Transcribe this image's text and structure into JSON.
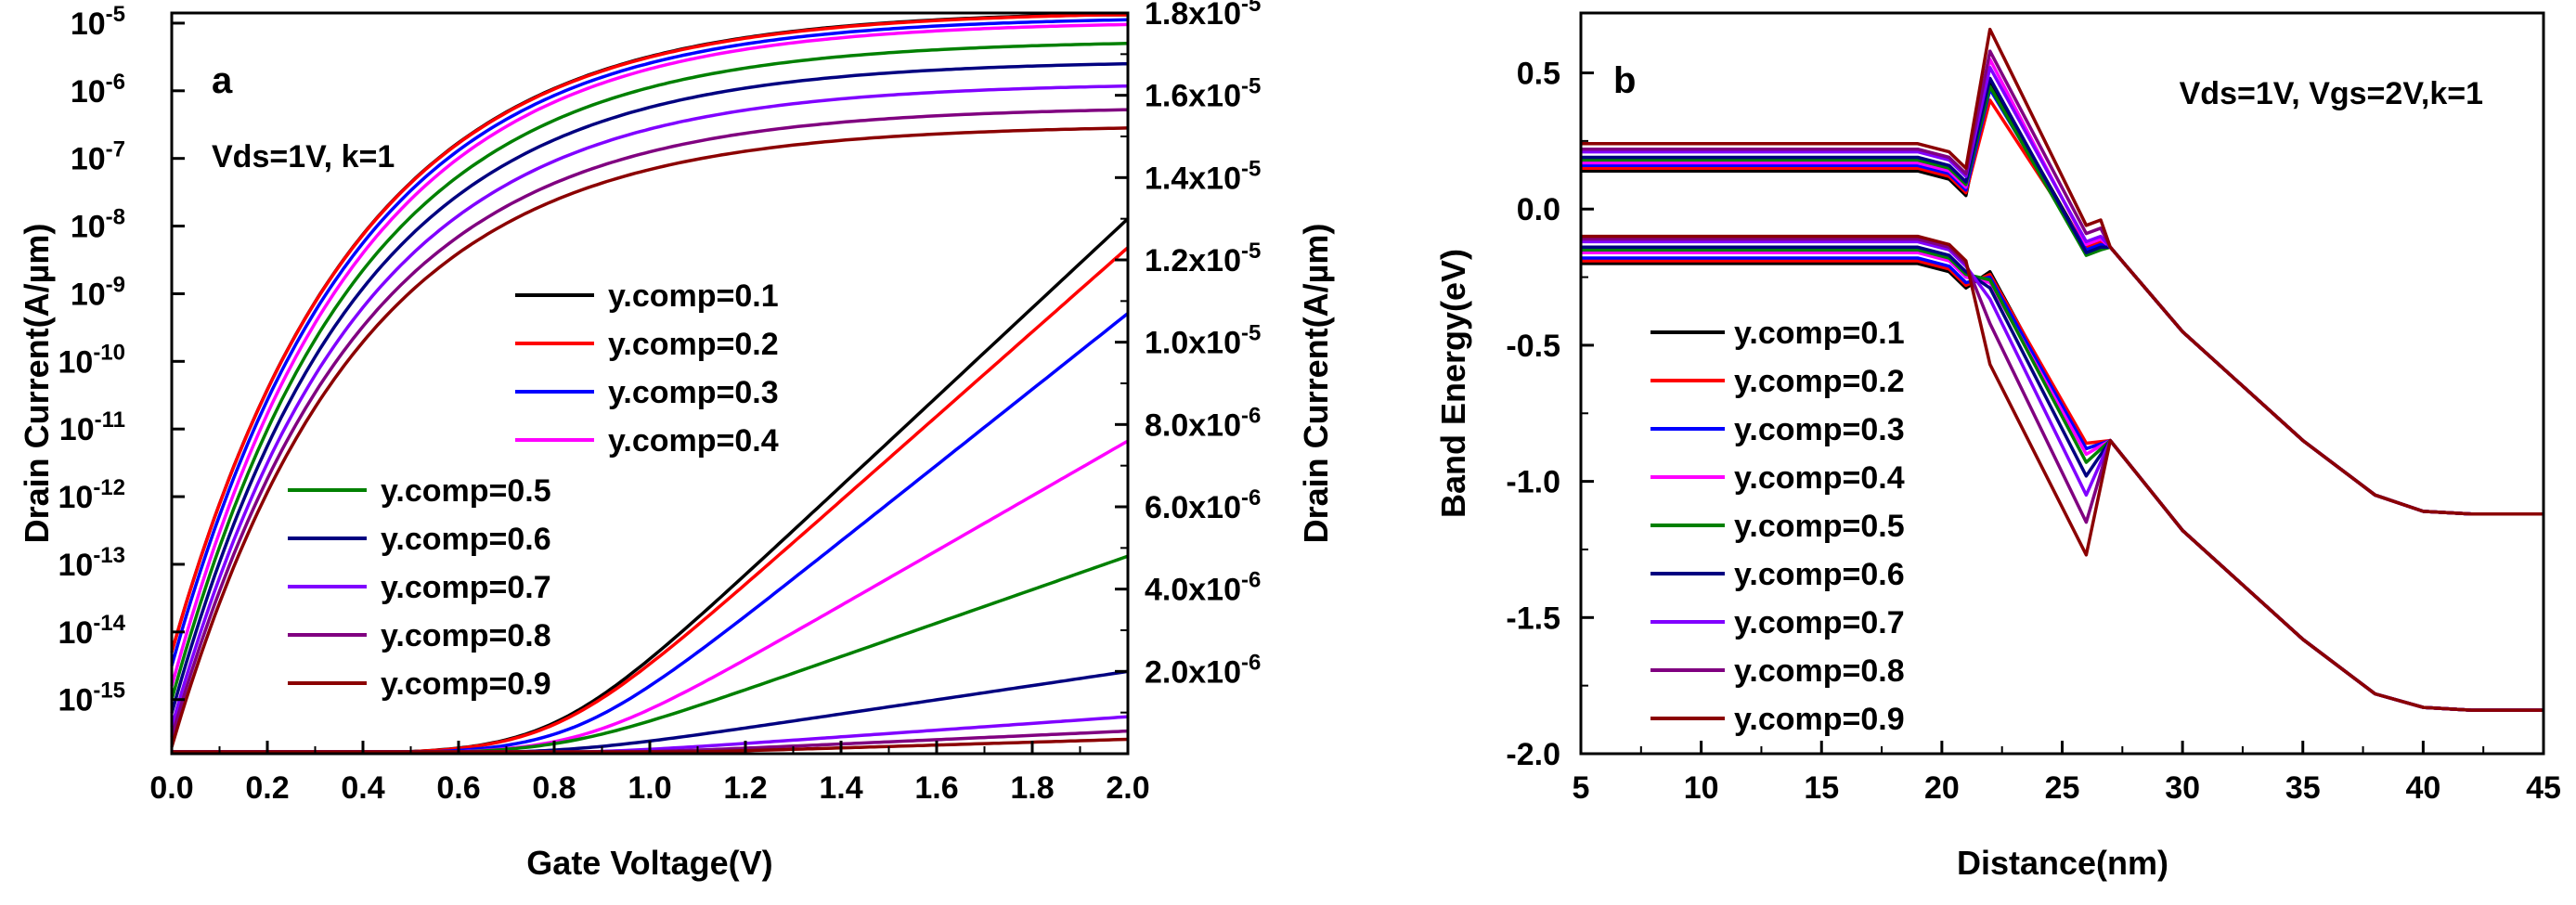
{
  "chart_data": [
    {
      "panel": "a",
      "type": "line",
      "annotation": "Vds=1V, k=1",
      "xlabel": "Gate Voltage(V)",
      "ylabel_left": "Drain Current(A/µm)",
      "ylabel_right": "Drain Current(A/µm)",
      "xlim": [
        0,
        2.0
      ],
      "x_ticks": [
        "0.0",
        "0.2",
        "0.4",
        "0.6",
        "0.8",
        "1.0",
        "1.2",
        "1.4",
        "1.6",
        "1.8",
        "2.0"
      ],
      "ylim_left_log10": [
        -15.8,
        -4.85
      ],
      "y_left_ticks": [
        {
          "base": "10",
          "exp": "-15"
        },
        {
          "base": "10",
          "exp": "-14"
        },
        {
          "base": "10",
          "exp": "-13"
        },
        {
          "base": "10",
          "exp": "-12"
        },
        {
          "base": "10",
          "exp": "-11"
        },
        {
          "base": "10",
          "exp": "-10"
        },
        {
          "base": "10",
          "exp": "-9"
        },
        {
          "base": "10",
          "exp": "-8"
        },
        {
          "base": "10",
          "exp": "-7"
        },
        {
          "base": "10",
          "exp": "-6"
        },
        {
          "base": "10",
          "exp": "-5"
        }
      ],
      "ylim_right": [
        0,
        1.8e-05
      ],
      "y_right_ticks": [
        {
          "mant": "2.0x10",
          "exp": "-6"
        },
        {
          "mant": "4.0x10",
          "exp": "-6"
        },
        {
          "mant": "6.0x10",
          "exp": "-6"
        },
        {
          "mant": "8.0x10",
          "exp": "-6"
        },
        {
          "mant": "1.0x10",
          "exp": "-5"
        },
        {
          "mant": "1.2x10",
          "exp": "-5"
        },
        {
          "mant": "1.4x10",
          "exp": "-5"
        },
        {
          "mant": "1.6x10",
          "exp": "-5"
        },
        {
          "mant": "1.8x10",
          "exp": "-5"
        }
      ],
      "legend_group_1": [
        "y.comp=0.1",
        "y.comp=0.2",
        "y.comp=0.3",
        "y.comp=0.4"
      ],
      "legend_group_2": [
        "y.comp=0.5",
        "y.comp=0.6",
        "y.comp=0.7",
        "y.comp=0.8",
        "y.comp=0.9"
      ],
      "series": [
        {
          "name": "y.comp=0.1",
          "color": "#000000",
          "log_start": -14.3,
          "log_end": -4.86,
          "lin_end": 1.3e-05,
          "vt": 0.8
        },
        {
          "name": "y.comp=0.2",
          "color": "#ff0000",
          "log_start": -14.3,
          "log_end": -4.87,
          "lin_end": 1.23e-05,
          "vt": 0.8
        },
        {
          "name": "y.comp=0.3",
          "color": "#0000ff",
          "log_start": -14.5,
          "log_end": -4.95,
          "lin_end": 1.07e-05,
          "vt": 0.84
        },
        {
          "name": "y.comp=0.4",
          "color": "#ff00ff",
          "log_start": -14.8,
          "log_end": -5.02,
          "lin_end": 7.6e-06,
          "vt": 0.86
        },
        {
          "name": "y.comp=0.5",
          "color": "#008000",
          "log_start": -15.0,
          "log_end": -5.3,
          "lin_end": 4.8e-06,
          "vt": 0.82
        },
        {
          "name": "y.comp=0.6",
          "color": "#000080",
          "log_start": -15.2,
          "log_end": -5.6,
          "lin_end": 2e-06,
          "vt": 0.84
        },
        {
          "name": "y.comp=0.7",
          "color": "#8000ff",
          "log_start": -15.4,
          "log_end": -5.93,
          "lin_end": 9e-07,
          "vt": 0.9
        },
        {
          "name": "y.comp=0.8",
          "color": "#800080",
          "log_start": -15.55,
          "log_end": -6.28,
          "lin_end": 5.5e-07,
          "vt": 0.95
        },
        {
          "name": "y.comp=0.9",
          "color": "#8b0000",
          "log_start": -15.7,
          "log_end": -6.55,
          "lin_end": 3.5e-07,
          "vt": 1.0
        }
      ]
    },
    {
      "panel": "b",
      "type": "line",
      "annotation": "Vds=1V, Vgs=2V,k=1",
      "xlabel": "Distance(nm)",
      "ylabel": "Band Energy(eV)",
      "xlim": [
        5,
        45
      ],
      "ylim": [
        -2.0,
        0.72
      ],
      "x_ticks": [
        "5",
        "10",
        "15",
        "20",
        "25",
        "30",
        "35",
        "40",
        "45"
      ],
      "y_ticks": [
        "0.5",
        "0.0",
        "-0.5",
        "-1.0",
        "-1.5",
        "-2.0"
      ],
      "legend": [
        "y.comp=0.1",
        "y.comp=0.2",
        "y.comp=0.3",
        "y.comp=0.4",
        "y.comp=0.5",
        "y.comp=0.6",
        "y.comp=0.7",
        "y.comp=0.8",
        "y.comp=0.9"
      ],
      "series": [
        {
          "name": "y.comp=0.1",
          "color": "#000000",
          "cb_level": 0.14,
          "cb_peak": 0.47,
          "cb_dip": -0.15,
          "vb_level": -0.2,
          "vb_peak": -0.23,
          "vb_dip": -0.88
        },
        {
          "name": "y.comp=0.2",
          "color": "#ff0000",
          "cb_level": 0.15,
          "cb_peak": 0.4,
          "cb_dip": -0.14,
          "vb_level": -0.19,
          "vb_peak": -0.24,
          "vb_dip": -0.86
        },
        {
          "name": "y.comp=0.3",
          "color": "#0000ff",
          "cb_level": 0.16,
          "cb_peak": 0.44,
          "cb_dip": -0.15,
          "vb_level": -0.18,
          "vb_peak": -0.25,
          "vb_dip": -0.88
        },
        {
          "name": "y.comp=0.4",
          "color": "#ff00ff",
          "cb_level": 0.17,
          "cb_peak": 0.55,
          "cb_dip": -0.13,
          "vb_level": -0.16,
          "vb_peak": -0.27,
          "vb_dip": -0.9
        },
        {
          "name": "y.comp=0.5",
          "color": "#008000",
          "cb_level": 0.18,
          "cb_peak": 0.45,
          "cb_dip": -0.17,
          "vb_level": -0.15,
          "vb_peak": -0.26,
          "vb_dip": -0.93
        },
        {
          "name": "y.comp=0.6",
          "color": "#000080",
          "cb_level": 0.19,
          "cb_peak": 0.48,
          "cb_dip": -0.16,
          "vb_level": -0.14,
          "vb_peak": -0.29,
          "vb_dip": -0.98
        },
        {
          "name": "y.comp=0.7",
          "color": "#8000ff",
          "cb_level": 0.21,
          "cb_peak": 0.52,
          "cb_dip": -0.12,
          "vb_level": -0.12,
          "vb_peak": -0.33,
          "vb_dip": -1.05
        },
        {
          "name": "y.comp=0.8",
          "color": "#800080",
          "cb_level": 0.22,
          "cb_peak": 0.58,
          "cb_dip": -0.09,
          "vb_level": -0.11,
          "vb_peak": -0.42,
          "vb_dip": -1.15
        },
        {
          "name": "y.comp=0.9",
          "color": "#8b0000",
          "cb_level": 0.24,
          "cb_peak": 0.66,
          "cb_dip": -0.06,
          "vb_level": -0.1,
          "vb_peak": -0.57,
          "vb_dip": -1.27
        }
      ],
      "common_cb_tail": [
        [
          27.0,
          -0.14
        ],
        [
          30,
          -0.45
        ],
        [
          35,
          -0.85
        ],
        [
          38,
          -1.05
        ],
        [
          40,
          -1.11
        ],
        [
          42,
          -1.12
        ],
        [
          45,
          -1.12
        ]
      ],
      "common_vb_tail": [
        [
          27.0,
          -0.85
        ],
        [
          30,
          -1.18
        ],
        [
          35,
          -1.58
        ],
        [
          38,
          -1.78
        ],
        [
          40,
          -1.83
        ],
        [
          42,
          -1.84
        ],
        [
          45,
          -1.84
        ]
      ]
    }
  ]
}
